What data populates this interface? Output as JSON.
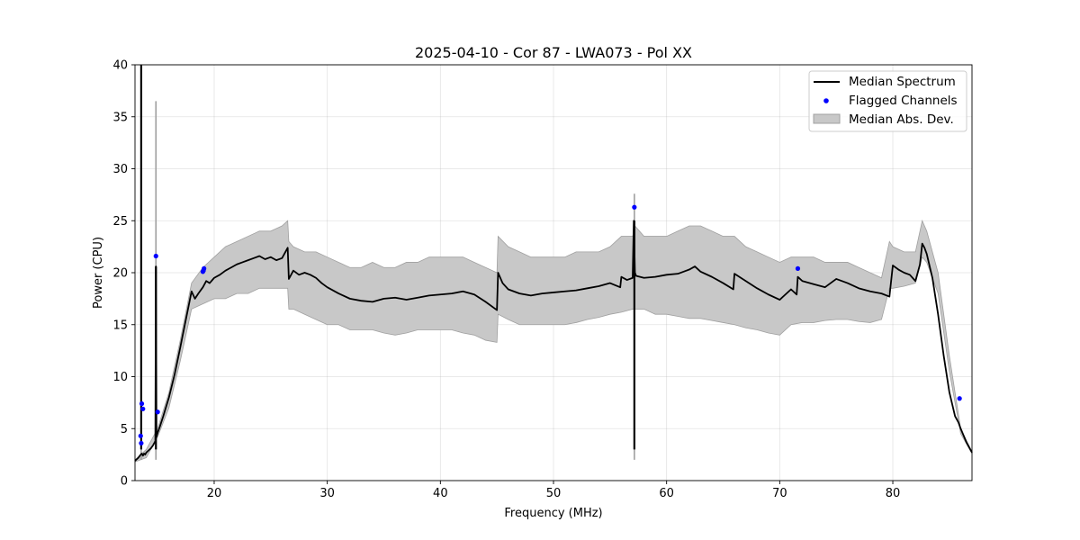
{
  "chart_data": {
    "type": "line",
    "title": "2025-04-10 - Cor 87 - LWA073 - Pol XX",
    "xlabel": "Frequency (MHz)",
    "ylabel": "Power (CPU)",
    "xlim": [
      13.0,
      87.0
    ],
    "ylim": [
      0,
      40
    ],
    "xticks": [
      20,
      30,
      40,
      50,
      60,
      70,
      80
    ],
    "yticks": [
      0,
      5,
      10,
      15,
      20,
      25,
      30,
      35,
      40
    ],
    "grid": true,
    "legend_position": "top-right",
    "legend": [
      "Median Spectrum",
      "Flagged Channels",
      "Median Abs. Dev."
    ],
    "colors": {
      "median": "#000000",
      "flagged": "#0000ff",
      "band_fill": "#c8c8c8",
      "band_edge": "#a0a0a0"
    },
    "series": [
      {
        "name": "Median Spectrum",
        "x": [
          13.0,
          13.3,
          13.5,
          13.6,
          13.7,
          13.8,
          13.9,
          14.0,
          14.2,
          14.4,
          14.6,
          14.8,
          14.85,
          14.9,
          15.0,
          15.2,
          15.5,
          16.0,
          16.5,
          17.0,
          17.5,
          18.0,
          18.3,
          18.6,
          19.0,
          19.3,
          19.6,
          20.0,
          20.5,
          21.0,
          21.5,
          22.0,
          22.5,
          23.0,
          23.5,
          24.0,
          24.5,
          25.0,
          25.5,
          26.0,
          26.5,
          26.6,
          27.0,
          27.5,
          28.0,
          28.5,
          29.0,
          29.5,
          30.0,
          31.0,
          32.0,
          33.0,
          34.0,
          35.0,
          36.0,
          37.0,
          38.0,
          39.0,
          40.0,
          41.0,
          42.0,
          43.0,
          44.0,
          45.0,
          45.1,
          45.5,
          46.0,
          47.0,
          48.0,
          49.0,
          50.0,
          51.0,
          52.0,
          53.0,
          54.0,
          55.0,
          55.9,
          56.0,
          56.5,
          57.0,
          57.1,
          57.2,
          57.3,
          58.0,
          59.0,
          60.0,
          61.0,
          62.0,
          62.5,
          63.0,
          64.0,
          65.0,
          65.9,
          66.0,
          67.0,
          68.0,
          69.0,
          70.0,
          70.5,
          71.0,
          71.5,
          71.6,
          72.0,
          73.0,
          74.0,
          75.0,
          76.0,
          77.0,
          78.0,
          79.0,
          79.7,
          80.0,
          80.5,
          81.0,
          81.5,
          82.0,
          82.4,
          82.6,
          82.8,
          83.0,
          83.5,
          84.0,
          84.5,
          85.0,
          85.5,
          85.8,
          86.0,
          86.5,
          87.0
        ],
        "y": [
          1.9,
          2.2,
          2.5,
          2.6,
          2.4,
          2.6,
          2.5,
          2.7,
          2.9,
          3.1,
          3.4,
          3.8,
          20.6,
          4.2,
          4.6,
          5.2,
          6.2,
          8.0,
          10.2,
          12.8,
          15.5,
          18.2,
          17.5,
          18.0,
          18.6,
          19.2,
          19.0,
          19.5,
          19.8,
          20.2,
          20.5,
          20.8,
          21.0,
          21.2,
          21.4,
          21.6,
          21.3,
          21.5,
          21.2,
          21.4,
          22.4,
          19.4,
          20.2,
          19.8,
          20.0,
          19.8,
          19.5,
          19.0,
          18.6,
          18.0,
          17.5,
          17.3,
          17.2,
          17.5,
          17.6,
          17.4,
          17.6,
          17.8,
          17.9,
          18.0,
          18.2,
          17.9,
          17.2,
          16.4,
          20.0,
          19.0,
          18.4,
          18.0,
          17.8,
          18.0,
          18.1,
          18.2,
          18.3,
          18.5,
          18.7,
          19.0,
          18.6,
          19.6,
          19.3,
          19.5,
          25.0,
          20.0,
          19.7,
          19.5,
          19.6,
          19.8,
          19.9,
          20.3,
          20.6,
          20.1,
          19.6,
          19.0,
          18.4,
          19.9,
          19.2,
          18.5,
          17.9,
          17.4,
          17.9,
          18.4,
          17.9,
          19.6,
          19.2,
          18.9,
          18.6,
          19.4,
          19.0,
          18.5,
          18.2,
          18.0,
          17.7,
          20.7,
          20.3,
          20.0,
          19.8,
          19.2,
          20.8,
          22.8,
          22.4,
          21.8,
          19.5,
          16.0,
          12.0,
          8.5,
          6.2,
          5.6,
          5.0,
          3.7,
          2.7
        ]
      },
      {
        "name": "Median Abs. Dev.",
        "x": [
          13.0,
          14.0,
          15.0,
          16.0,
          17.0,
          18.0,
          19.0,
          20.0,
          21.0,
          22.0,
          23.0,
          24.0,
          25.0,
          26.0,
          26.5,
          26.6,
          27.0,
          28.0,
          29.0,
          30.0,
          31.0,
          32.0,
          33.0,
          34.0,
          35.0,
          36.0,
          37.0,
          38.0,
          39.0,
          40.0,
          41.0,
          42.0,
          43.0,
          44.0,
          45.0,
          45.1,
          46.0,
          47.0,
          48.0,
          49.0,
          50.0,
          51.0,
          52.0,
          53.0,
          54.0,
          55.0,
          56.0,
          57.0,
          57.2,
          58.0,
          59.0,
          60.0,
          61.0,
          62.0,
          63.0,
          64.0,
          65.0,
          66.0,
          67.0,
          68.0,
          69.0,
          70.0,
          71.0,
          72.0,
          73.0,
          74.0,
          75.0,
          76.0,
          77.0,
          78.0,
          79.0,
          79.7,
          80.0,
          81.0,
          82.0,
          82.6,
          83.0,
          84.0,
          85.0,
          86.0,
          87.0
        ],
        "upper": [
          2.0,
          3.0,
          5.0,
          8.5,
          13.5,
          19.0,
          20.5,
          21.5,
          22.5,
          23.0,
          23.5,
          24.0,
          24.0,
          24.5,
          25.0,
          23.0,
          22.5,
          22.0,
          22.0,
          21.5,
          21.0,
          20.5,
          20.5,
          21.0,
          20.5,
          20.5,
          21.0,
          21.0,
          21.5,
          21.5,
          21.5,
          21.5,
          21.0,
          20.5,
          20.0,
          23.5,
          22.5,
          22.0,
          21.5,
          21.5,
          21.5,
          21.5,
          22.0,
          22.0,
          22.0,
          22.5,
          23.5,
          23.5,
          24.5,
          23.5,
          23.5,
          23.5,
          24.0,
          24.5,
          24.5,
          24.0,
          23.5,
          23.5,
          22.5,
          22.0,
          21.5,
          21.0,
          21.5,
          21.5,
          21.5,
          21.0,
          21.0,
          21.0,
          20.5,
          20.0,
          19.5,
          23.0,
          22.5,
          22.0,
          22.0,
          25.0,
          24.0,
          20.0,
          12.0,
          5.0,
          2.8
        ],
        "lower": [
          1.8,
          2.2,
          4.2,
          7.0,
          11.5,
          16.5,
          17.0,
          17.5,
          17.5,
          18.0,
          18.0,
          18.5,
          18.5,
          18.5,
          18.5,
          16.5,
          16.5,
          16.0,
          15.5,
          15.0,
          15.0,
          14.5,
          14.5,
          14.5,
          14.2,
          14.0,
          14.2,
          14.5,
          14.5,
          14.5,
          14.5,
          14.2,
          14.0,
          13.5,
          13.3,
          16.0,
          15.5,
          15.0,
          15.0,
          15.0,
          15.0,
          15.0,
          15.2,
          15.5,
          15.7,
          16.0,
          16.2,
          16.5,
          16.5,
          16.5,
          16.0,
          16.0,
          15.8,
          15.6,
          15.6,
          15.4,
          15.2,
          15.0,
          14.7,
          14.5,
          14.2,
          14.0,
          15.0,
          15.2,
          15.2,
          15.4,
          15.5,
          15.5,
          15.3,
          15.2,
          15.5,
          18.5,
          18.5,
          18.7,
          19.0,
          21.5,
          21.0,
          18.0,
          10.5,
          4.5,
          2.6
        ]
      }
    ],
    "spikes": [
      {
        "x": 13.55,
        "median_top": 40.0,
        "band_top": 11.0
      },
      {
        "x": 14.85,
        "median_top": 20.6,
        "band_top": 36.5
      },
      {
        "x": 57.15,
        "median_top": 25.0,
        "band_top": 27.6
      }
    ],
    "flagged_points": {
      "x": [
        13.5,
        13.55,
        13.6,
        13.7,
        15.0,
        14.85,
        19.0,
        19.05,
        19.1,
        57.15,
        71.6,
        85.9
      ],
      "y": [
        4.3,
        3.6,
        7.4,
        6.9,
        6.6,
        21.6,
        20.1,
        20.2,
        20.4,
        26.3,
        20.4,
        7.9
      ]
    }
  }
}
